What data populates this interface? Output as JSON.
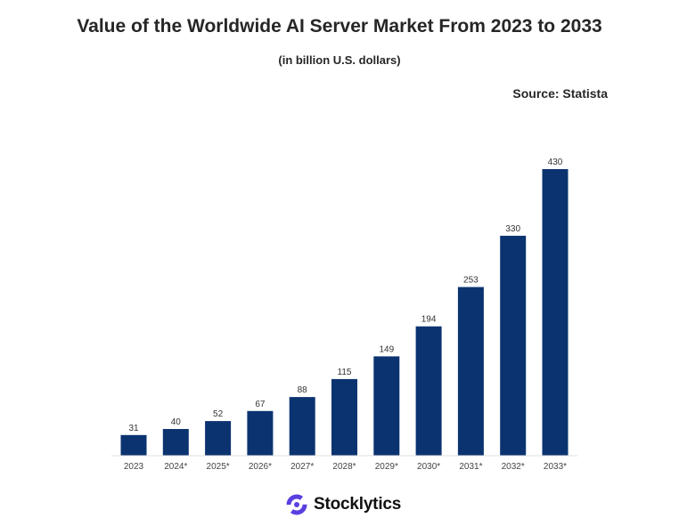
{
  "header": {
    "title": "Value of the Worldwide AI Server Market From 2023 to 2033",
    "subtitle": "(in billion U.S. dollars)",
    "source": "Source: Statista"
  },
  "brand": {
    "name": "Stocklytics",
    "icon": "stocklytics-logo-icon",
    "accent_color": "#5a3fe0"
  },
  "chart_data": {
    "type": "bar",
    "title": "Value of the Worldwide AI Server Market From 2023 to 2033",
    "subtitle": "(in billion U.S. dollars)",
    "categories": [
      "2023",
      "2024*",
      "2025*",
      "2026*",
      "2027*",
      "2028*",
      "2029*",
      "2030*",
      "2031*",
      "2032*",
      "2033*"
    ],
    "values": [
      31,
      40,
      52,
      67,
      88,
      115,
      149,
      194,
      253,
      330,
      430
    ],
    "ylim": [
      0,
      430
    ],
    "bar_color": "#0b3370",
    "grid": false,
    "legend": "none",
    "data_labels": true
  }
}
